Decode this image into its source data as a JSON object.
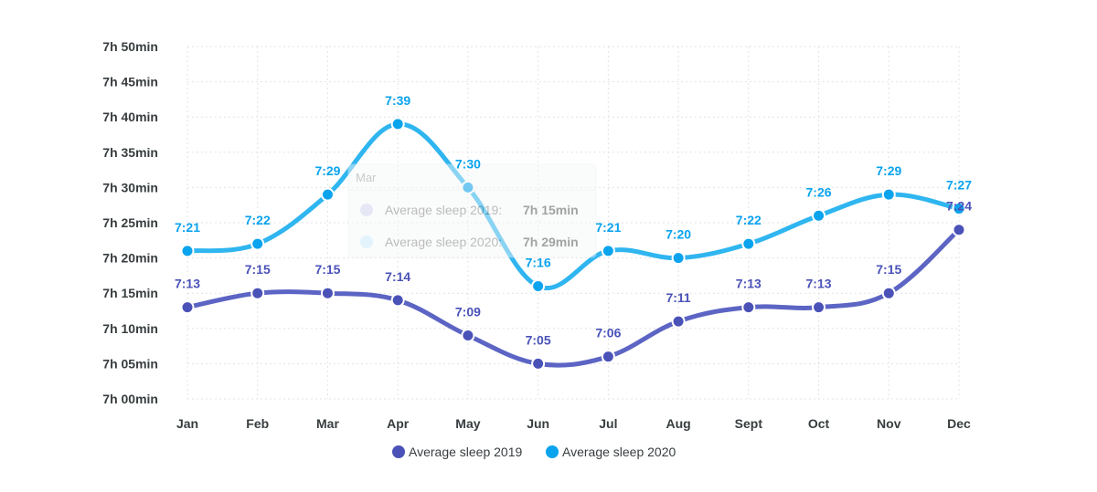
{
  "chart_data": {
    "type": "line",
    "title": "",
    "xlabel": "",
    "ylabel": "",
    "categories": [
      "Jan",
      "Feb",
      "Mar",
      "Apr",
      "May",
      "Jun",
      "Jul",
      "Aug",
      "Sept",
      "Oct",
      "Nov",
      "Dec"
    ],
    "y_ticks": [
      "7h 00min",
      "7h 05min",
      "7h 10min",
      "7h 15min",
      "7h 20min",
      "7h 25min",
      "7h 30min",
      "7h 35min",
      "7h 40min",
      "7h 45min",
      "7h 50min"
    ],
    "ylim": [
      0,
      50
    ],
    "grid": true,
    "legend_position": "bottom-center",
    "series": [
      {
        "name": "Average sleep 2019",
        "color": "#4a52b8",
        "line_color": "#5c64c4",
        "values": [
          13,
          15,
          15,
          14,
          9,
          5,
          6,
          11,
          13,
          13,
          15,
          24
        ],
        "labels": [
          "7:13",
          "7:15",
          "7:15",
          "7:14",
          "7:09",
          "7:05",
          "7:06",
          "7:11",
          "7:13",
          "7:13",
          "7:15",
          "7:24"
        ]
      },
      {
        "name": "Average sleep 2020",
        "color": "#0aa3ee",
        "line_color": "#2fb5f0",
        "values": [
          21,
          22,
          29,
          39,
          30,
          16,
          21,
          20,
          22,
          26,
          29,
          27
        ],
        "labels": [
          "7:21",
          "7:22",
          "7:29",
          "7:39",
          "7:30",
          "7:16",
          "7:21",
          "7:20",
          "7:22",
          "7:26",
          "7:29",
          "7:27"
        ]
      }
    ],
    "tooltip": {
      "title": "Mar",
      "rows": [
        {
          "label": "Average sleep 2019:",
          "value": "7h 15min",
          "color": "#c9cbea"
        },
        {
          "label": "Average sleep 2020:",
          "value": "7h 29min",
          "color": "#bfe6fa"
        }
      ]
    }
  }
}
